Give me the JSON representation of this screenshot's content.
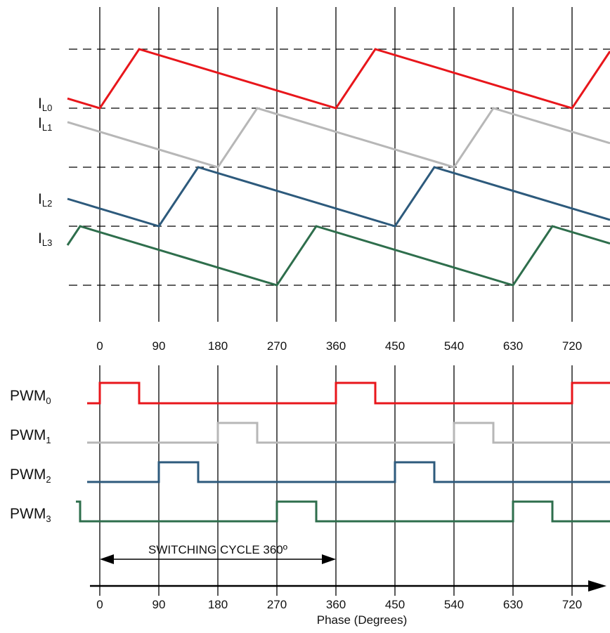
{
  "diagram": {
    "phase_ticks_top": [
      "0",
      "90",
      "180",
      "270",
      "360",
      "450",
      "540",
      "630",
      "720"
    ],
    "phase_ticks_bottom": [
      "0",
      "90",
      "180",
      "270",
      "360",
      "450",
      "540",
      "630",
      "720"
    ],
    "axis_title": "Phase  (Degrees)",
    "switching_cycle_label": "SWITCHING CYCLE 360º",
    "phases": [
      {
        "current_label": "I",
        "current_sub": "L0",
        "pwm_label": "PWM",
        "pwm_sub": "0",
        "color": "#e8161b",
        "offset_deg": 0
      },
      {
        "current_label": "I",
        "current_sub": "L1",
        "pwm_label": "PWM",
        "pwm_sub": "1",
        "color": "#b7b7b7",
        "offset_deg": 180
      },
      {
        "current_label": "I",
        "current_sub": "L2",
        "pwm_label": "PWM",
        "pwm_sub": "2",
        "color": "#2d5a7c",
        "offset_deg": 90
      },
      {
        "current_label": "I",
        "current_sub": "L3",
        "pwm_label": "PWM",
        "pwm_sub": "3",
        "color": "#2e6e4c",
        "offset_deg": 270
      }
    ],
    "on_time_deg": 60,
    "period_deg": 360,
    "axis_color": "#000000"
  }
}
